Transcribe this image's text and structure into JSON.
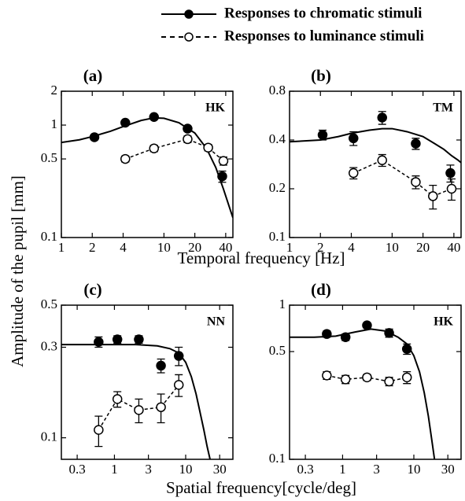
{
  "chart_data": [
    {
      "type": "line",
      "panel": "(a)",
      "subject": "HK",
      "log_x": true,
      "log_y": true,
      "ylabel": "Amplitude of the pupil [mm]",
      "xlabel": "Temporal frequency [Hz]",
      "xlim": [
        1,
        47
      ],
      "ylim": [
        0.1,
        2
      ],
      "xticks": [
        1,
        2,
        4,
        10,
        20,
        40
      ],
      "yticks": [
        0.1,
        0.5,
        1,
        2
      ],
      "series": [
        {
          "name": "Responses to chromatic stimuli",
          "color": "#000000",
          "marker": "filled",
          "x": [
            2.1,
            4.2,
            8,
            17,
            37
          ],
          "values": [
            0.78,
            1.05,
            1.18,
            0.93,
            0.35
          ],
          "errors": [
            0.04,
            0.05,
            0.05,
            0.05,
            0.04
          ],
          "fit": {
            "x": [
              1,
              1.5,
              2,
              3,
              4,
              6,
              8,
              10,
              14,
              20,
              26,
              32,
              38,
              44,
              47
            ],
            "values": [
              0.7,
              0.74,
              0.79,
              0.88,
              0.97,
              1.1,
              1.16,
              1.15,
              1.05,
              0.85,
              0.62,
              0.42,
              0.27,
              0.18,
              0.15
            ]
          }
        },
        {
          "name": "Responses to luminance stimuli",
          "color": "#000000",
          "marker": "open",
          "x": [
            4.2,
            8,
            17,
            27,
            38
          ],
          "values": [
            0.5,
            0.62,
            0.75,
            0.63,
            0.48
          ],
          "errors": [
            0.03,
            0.04,
            0.05,
            0.04,
            0.04
          ]
        }
      ]
    },
    {
      "type": "line",
      "panel": "(b)",
      "subject": "TM",
      "log_x": true,
      "log_y": true,
      "xlim": [
        1,
        47
      ],
      "ylim": [
        0.1,
        0.8
      ],
      "xticks": [
        1,
        2,
        4,
        10,
        20,
        40
      ],
      "yticks": [
        0.1,
        0.2,
        0.4,
        0.8
      ],
      "series": [
        {
          "color": "#000000",
          "marker": "filled",
          "x": [
            2.1,
            4.2,
            8,
            17,
            37
          ],
          "values": [
            0.43,
            0.41,
            0.55,
            0.38,
            0.25
          ],
          "errors": [
            0.03,
            0.04,
            0.05,
            0.03,
            0.03
          ],
          "fit": {
            "x": [
              1,
              2,
              3,
              4,
              6,
              8,
              10,
              14,
              20,
              26,
              32,
              38,
              44,
              47
            ],
            "values": [
              0.39,
              0.4,
              0.42,
              0.44,
              0.46,
              0.47,
              0.47,
              0.45,
              0.42,
              0.38,
              0.35,
              0.32,
              0.3,
              0.29
            ]
          }
        },
        {
          "color": "#000000",
          "marker": "open",
          "x": [
            4.2,
            8,
            17,
            25,
            38
          ],
          "values": [
            0.25,
            0.3,
            0.22,
            0.18,
            0.2
          ],
          "errors": [
            0.02,
            0.025,
            0.02,
            0.03,
            0.03
          ]
        }
      ]
    },
    {
      "type": "line",
      "panel": "(c)",
      "subject": "NN",
      "log_x": true,
      "log_y": true,
      "xlabel": "Spatial frequency[cycle/deg]",
      "xlim": [
        0.18,
        46
      ],
      "ylim": [
        0.077,
        0.5
      ],
      "xticks": [
        0.3,
        1,
        3,
        10,
        30
      ],
      "yticks": [
        0.1,
        0.3,
        0.5
      ],
      "series": [
        {
          "color": "#000000",
          "marker": "filled",
          "x": [
            0.6,
            1.1,
            2.2,
            4.5,
            8
          ],
          "values": [
            0.32,
            0.33,
            0.33,
            0.24,
            0.27
          ],
          "errors": [
            0.02,
            0.015,
            0.015,
            0.02,
            0.03
          ],
          "fit": {
            "x": [
              0.18,
              0.5,
              1,
              2,
              4,
              6,
              8,
              10,
              12,
              14,
              16,
              18,
              20,
              22
            ],
            "values": [
              0.31,
              0.31,
              0.31,
              0.31,
              0.305,
              0.295,
              0.28,
              0.25,
              0.21,
              0.17,
              0.135,
              0.11,
              0.09,
              0.077
            ]
          }
        },
        {
          "color": "#000000",
          "marker": "open",
          "x": [
            0.6,
            1.1,
            2.2,
            4.5,
            8
          ],
          "values": [
            0.11,
            0.16,
            0.14,
            0.145,
            0.19
          ],
          "errors": [
            0.02,
            0.015,
            0.02,
            0.025,
            0.025
          ]
        }
      ]
    },
    {
      "type": "line",
      "panel": "(d)",
      "subject": "HK",
      "log_x": true,
      "log_y": true,
      "xlim": [
        0.18,
        46
      ],
      "ylim": [
        0.1,
        1
      ],
      "xticks": [
        0.3,
        1,
        3,
        10,
        30
      ],
      "yticks": [
        0.1,
        0.5,
        1
      ],
      "series": [
        {
          "color": "#000000",
          "marker": "filled",
          "x": [
            0.6,
            1.1,
            2.2,
            4.5,
            8
          ],
          "values": [
            0.65,
            0.62,
            0.74,
            0.66,
            0.52
          ],
          "errors": [
            0.03,
            0.03,
            0.03,
            0.04,
            0.04
          ],
          "fit": {
            "x": [
              0.18,
              0.4,
              0.8,
              1.5,
              2.5,
              4,
              6,
              8,
              10,
              12,
              14,
              16,
              18,
              19.5
            ],
            "values": [
              0.62,
              0.62,
              0.63,
              0.67,
              0.7,
              0.68,
              0.62,
              0.56,
              0.47,
              0.37,
              0.27,
              0.19,
              0.13,
              0.1
            ]
          }
        },
        {
          "color": "#000000",
          "marker": "open",
          "x": [
            0.6,
            1.1,
            2.2,
            4.5,
            8
          ],
          "values": [
            0.35,
            0.33,
            0.34,
            0.32,
            0.34
          ],
          "errors": [
            0.02,
            0.02,
            0.015,
            0.02,
            0.03
          ]
        }
      ]
    }
  ]
}
